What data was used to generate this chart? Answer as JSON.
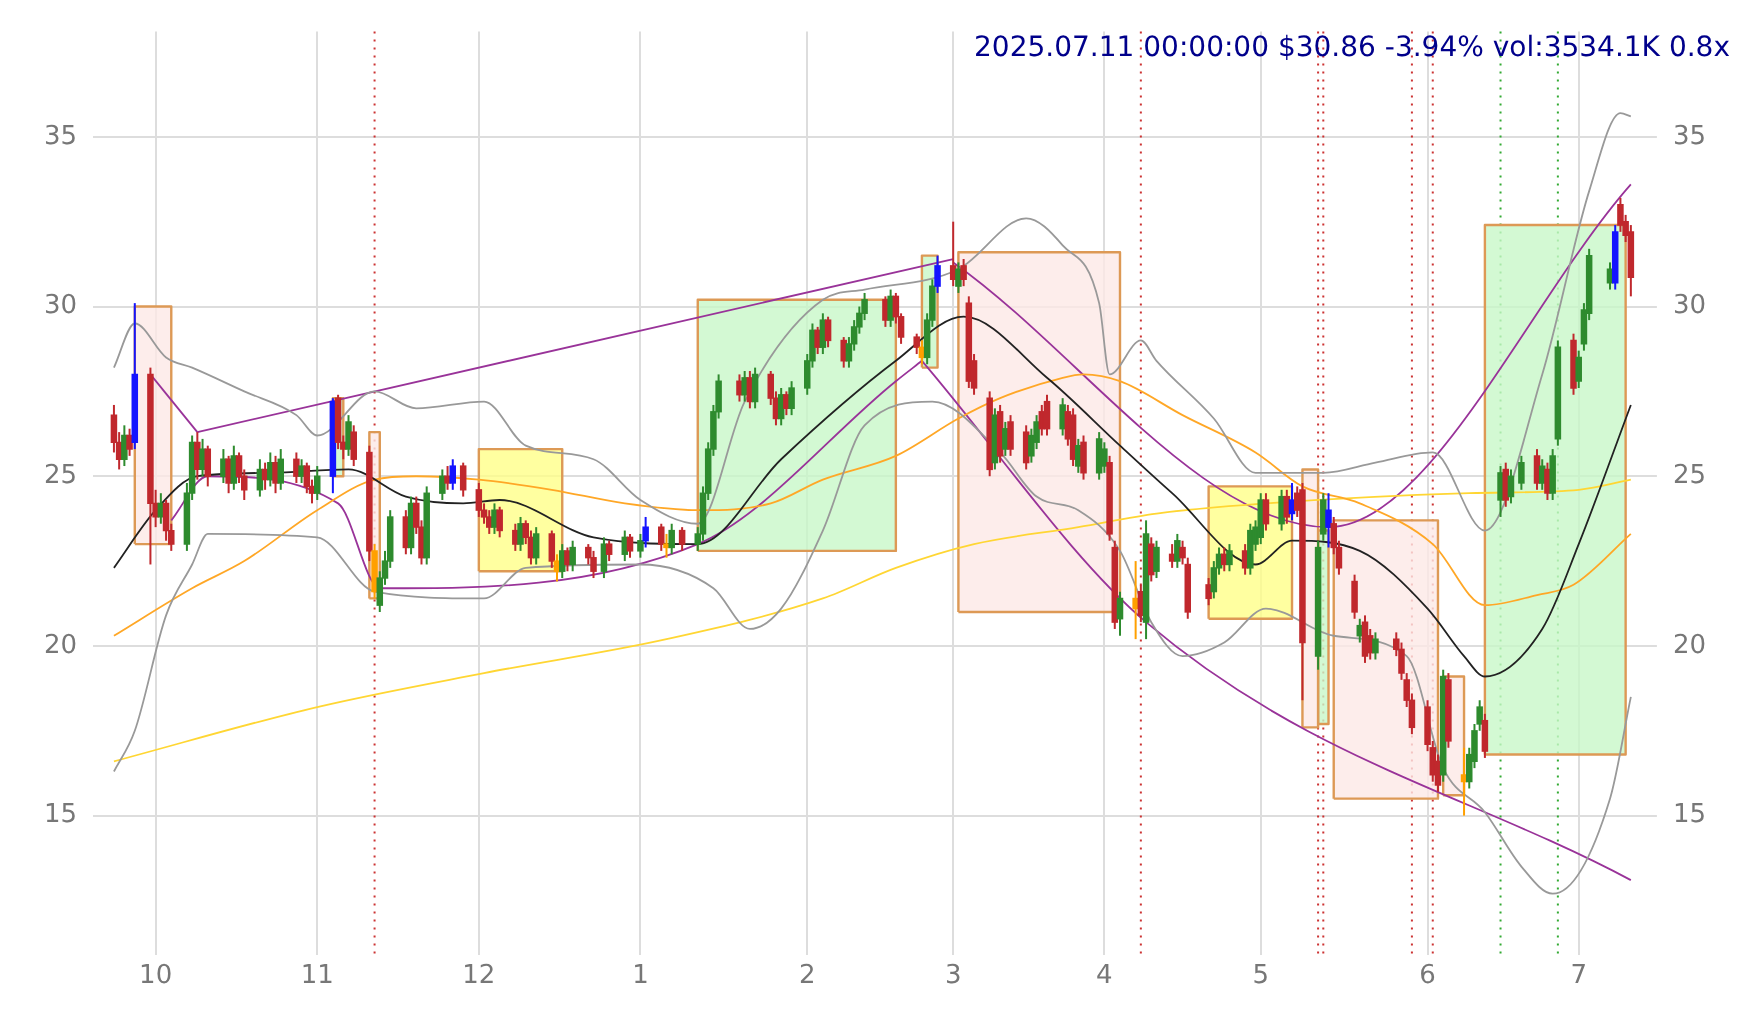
{
  "chart_data": {
    "type": "candlestick",
    "title": "2025.07.11 00:00:00 $30.86 -3.94% vol:3534.1K 0.8x",
    "x": [
      "2024-09-23",
      "2024-09-24",
      "2024-09-25",
      "2024-09-26",
      "2024-09-27",
      "2024-09-30",
      "2024-10-01",
      "2024-10-02",
      "2024-10-03",
      "2024-10-04",
      "2024-10-07",
      "2024-10-08",
      "2024-10-09",
      "2024-10-10",
      "2024-10-11",
      "2024-10-14",
      "2024-10-15",
      "2024-10-16",
      "2024-10-17",
      "2024-10-18",
      "2024-10-21",
      "2024-10-22",
      "2024-10-23",
      "2024-10-24",
      "2024-10-25",
      "2024-10-28",
      "2024-10-29",
      "2024-10-30",
      "2024-10-31",
      "2024-11-01",
      "2024-11-04",
      "2024-11-05",
      "2024-11-06",
      "2024-11-07",
      "2024-11-08",
      "2024-11-11",
      "2024-11-12",
      "2024-11-13",
      "2024-11-14",
      "2024-11-15",
      "2024-11-18",
      "2024-11-19",
      "2024-11-20",
      "2024-11-21",
      "2024-11-22",
      "2024-11-25",
      "2024-11-26",
      "2024-11-27",
      "2024-11-29",
      "2024-12-02",
      "2024-12-03",
      "2024-12-04",
      "2024-12-05",
      "2024-12-06",
      "2024-12-09",
      "2024-12-10",
      "2024-12-11",
      "2024-12-12",
      "2024-12-13",
      "2024-12-16",
      "2024-12-17",
      "2024-12-18",
      "2024-12-19",
      "2024-12-20",
      "2024-12-23",
      "2024-12-24",
      "2024-12-26",
      "2024-12-27",
      "2024-12-30",
      "2024-12-31",
      "2025-01-02",
      "2025-01-03",
      "2025-01-06",
      "2025-01-07",
      "2025-01-08",
      "2025-01-10",
      "2025-01-13",
      "2025-01-14",
      "2025-01-15",
      "2025-01-16",
      "2025-01-17",
      "2025-01-21",
      "2025-01-22",
      "2025-01-23",
      "2025-01-24",
      "2025-01-27",
      "2025-01-28",
      "2025-01-29",
      "2025-01-30",
      "2025-01-31",
      "2025-02-03",
      "2025-02-04",
      "2025-02-05",
      "2025-02-06",
      "2025-02-07",
      "2025-02-10",
      "2025-02-11",
      "2025-02-12",
      "2025-02-13",
      "2025-02-14",
      "2025-02-18",
      "2025-02-19",
      "2025-02-20",
      "2025-02-21",
      "2025-02-24",
      "2025-02-25",
      "2025-02-26",
      "2025-02-27",
      "2025-02-28",
      "2025-03-03",
      "2025-03-04",
      "2025-03-05",
      "2025-03-06",
      "2025-03-07",
      "2025-03-10",
      "2025-03-11",
      "2025-03-12",
      "2025-03-13",
      "2025-03-14",
      "2025-03-17",
      "2025-03-18",
      "2025-03-19",
      "2025-03-20",
      "2025-03-21",
      "2025-03-24",
      "2025-03-25",
      "2025-03-26",
      "2025-03-27",
      "2025-03-28",
      "2025-03-31",
      "2025-04-01",
      "2025-04-02",
      "2025-04-03",
      "2025-04-04",
      "2025-04-07",
      "2025-04-08",
      "2025-04-09",
      "2025-04-10",
      "2025-04-11",
      "2025-04-14",
      "2025-04-15",
      "2025-04-16",
      "2025-04-17",
      "2025-04-21",
      "2025-04-22",
      "2025-04-23",
      "2025-04-24",
      "2025-04-25",
      "2025-04-28",
      "2025-04-29",
      "2025-04-30",
      "2025-05-01",
      "2025-05-02",
      "2025-05-05",
      "2025-05-06",
      "2025-05-07",
      "2025-05-08",
      "2025-05-09",
      "2025-05-12",
      "2025-05-13",
      "2025-05-14",
      "2025-05-15",
      "2025-05-16",
      "2025-05-19",
      "2025-05-20",
      "2025-05-21",
      "2025-05-22",
      "2025-05-23",
      "2025-05-27",
      "2025-05-28",
      "2025-05-29",
      "2025-05-30",
      "2025-06-02",
      "2025-06-03",
      "2025-06-04",
      "2025-06-05",
      "2025-06-06",
      "2025-06-09",
      "2025-06-10",
      "2025-06-11",
      "2025-06-12",
      "2025-06-13",
      "2025-06-16",
      "2025-06-17",
      "2025-06-18",
      "2025-06-20",
      "2025-06-23",
      "2025-06-24",
      "2025-06-25",
      "2025-06-26",
      "2025-06-27",
      "2025-06-30",
      "2025-07-01",
      "2025-07-02",
      "2025-07-03",
      "2025-07-07",
      "2025-07-08",
      "2025-07-09",
      "2025-07-10",
      "2025-07-11"
    ],
    "ohlc": [
      [
        26.8,
        27.1,
        25.7,
        26.0
      ],
      [
        26.0,
        26.3,
        25.2,
        25.5
      ],
      [
        25.5,
        26.5,
        25.3,
        26.2
      ],
      [
        26.2,
        26.4,
        25.6,
        25.8
      ],
      [
        26.0,
        30.1,
        25.8,
        28.0
      ],
      [
        28.0,
        28.2,
        22.4,
        24.2
      ],
      [
        24.2,
        24.6,
        23.5,
        23.8
      ],
      [
        23.8,
        24.5,
        23.6,
        24.2
      ],
      [
        24.2,
        24.3,
        23.1,
        23.4
      ],
      [
        23.4,
        23.6,
        22.8,
        23.0
      ],
      [
        23.0,
        24.8,
        22.8,
        24.5
      ],
      [
        24.5,
        26.2,
        24.3,
        26.0
      ],
      [
        26.0,
        26.3,
        24.9,
        25.2
      ],
      [
        25.2,
        26.1,
        25.0,
        25.8
      ],
      [
        25.8,
        25.9,
        24.7,
        25.0
      ],
      [
        25.0,
        25.8,
        24.8,
        25.5
      ],
      [
        25.5,
        25.6,
        24.5,
        24.8
      ],
      [
        24.8,
        25.9,
        24.6,
        25.6
      ],
      [
        25.6,
        25.7,
        24.8,
        25.0
      ],
      [
        25.0,
        25.2,
        24.3,
        24.6
      ],
      [
        24.6,
        25.5,
        24.4,
        25.2
      ],
      [
        25.2,
        25.4,
        24.6,
        24.9
      ],
      [
        24.9,
        25.7,
        24.7,
        25.4
      ],
      [
        25.4,
        25.6,
        24.5,
        24.8
      ],
      [
        24.8,
        25.8,
        24.6,
        25.5
      ],
      [
        25.5,
        25.7,
        24.8,
        25.0
      ],
      [
        25.0,
        25.5,
        24.8,
        25.3
      ],
      [
        25.3,
        25.4,
        24.5,
        24.7
      ],
      [
        24.7,
        24.9,
        24.2,
        24.5
      ],
      [
        24.5,
        25.3,
        24.3,
        25.0
      ],
      [
        25.0,
        27.3,
        24.5,
        27.2
      ],
      [
        27.3,
        27.4,
        25.8,
        26.0
      ],
      [
        26.0,
        26.2,
        25.5,
        25.8
      ],
      [
        25.8,
        26.8,
        25.6,
        26.6
      ],
      [
        26.3,
        26.5,
        25.3,
        25.5
      ],
      [
        25.7,
        25.9,
        22.5,
        22.8
      ],
      [
        22.8,
        23.0,
        21.4,
        21.6
      ],
      [
        21.2,
        22.2,
        21.0,
        22.0
      ],
      [
        22.0,
        22.8,
        21.8,
        22.5
      ],
      [
        22.5,
        24.0,
        22.3,
        23.8
      ],
      [
        23.8,
        24.0,
        22.7,
        22.9
      ],
      [
        22.9,
        24.4,
        22.7,
        24.2
      ],
      [
        24.2,
        24.4,
        23.3,
        23.5
      ],
      [
        23.5,
        23.7,
        22.4,
        22.6
      ],
      [
        22.6,
        24.7,
        22.4,
        24.5
      ],
      [
        24.5,
        25.2,
        24.3,
        25.0
      ],
      [
        25.0,
        25.3,
        24.6,
        24.8
      ],
      [
        24.8,
        25.5,
        24.6,
        25.3
      ],
      [
        25.3,
        25.4,
        24.4,
        24.6
      ],
      [
        24.6,
        24.8,
        23.8,
        24.0
      ],
      [
        24.0,
        24.2,
        23.6,
        23.8
      ],
      [
        23.8,
        24.0,
        23.3,
        23.5
      ],
      [
        23.5,
        24.2,
        23.3,
        24.0
      ],
      [
        24.0,
        24.1,
        23.2,
        23.4
      ],
      [
        23.4,
        23.6,
        22.8,
        23.0
      ],
      [
        23.0,
        23.8,
        22.8,
        23.6
      ],
      [
        23.6,
        23.7,
        23.0,
        23.2
      ],
      [
        23.2,
        23.4,
        22.4,
        22.6
      ],
      [
        22.6,
        23.5,
        22.4,
        23.3
      ],
      [
        23.3,
        23.4,
        22.3,
        22.5
      ],
      [
        22.5,
        22.7,
        21.9,
        22.2
      ],
      [
        22.2,
        23.0,
        22.0,
        22.8
      ],
      [
        22.8,
        22.9,
        22.2,
        22.4
      ],
      [
        22.4,
        23.1,
        22.2,
        22.9
      ],
      [
        22.9,
        23.0,
        22.4,
        22.6
      ],
      [
        22.6,
        22.8,
        22.0,
        22.2
      ],
      [
        22.2,
        23.2,
        22.0,
        23.0
      ],
      [
        23.0,
        23.1,
        22.5,
        22.7
      ],
      [
        22.7,
        23.4,
        22.5,
        23.2
      ],
      [
        23.2,
        23.3,
        22.6,
        22.8
      ],
      [
        22.8,
        23.3,
        22.6,
        23.1
      ],
      [
        23.1,
        23.8,
        22.9,
        23.5
      ],
      [
        23.5,
        23.6,
        22.8,
        23.0
      ],
      [
        23.0,
        23.3,
        22.6,
        22.9
      ],
      [
        22.9,
        23.6,
        22.7,
        23.4
      ],
      [
        23.4,
        23.5,
        22.8,
        23.0
      ],
      [
        23.0,
        23.5,
        22.8,
        23.3
      ],
      [
        23.3,
        24.7,
        23.1,
        24.5
      ],
      [
        24.5,
        26.0,
        24.3,
        25.8
      ],
      [
        25.8,
        27.1,
        25.6,
        26.9
      ],
      [
        26.9,
        28.0,
        26.7,
        27.8
      ],
      [
        27.8,
        28.0,
        27.2,
        27.4
      ],
      [
        27.4,
        28.1,
        27.2,
        27.9
      ],
      [
        27.9,
        28.1,
        27.0,
        27.2
      ],
      [
        27.2,
        28.2,
        27.0,
        28.0
      ],
      [
        28.0,
        28.1,
        27.1,
        27.3
      ],
      [
        27.3,
        27.5,
        26.5,
        26.7
      ],
      [
        26.7,
        27.6,
        26.5,
        27.4
      ],
      [
        27.4,
        27.5,
        26.8,
        27.0
      ],
      [
        27.0,
        27.8,
        26.8,
        27.6
      ],
      [
        27.6,
        28.6,
        27.4,
        28.4
      ],
      [
        28.4,
        29.5,
        28.2,
        29.3
      ],
      [
        29.3,
        29.4,
        28.6,
        28.8
      ],
      [
        28.8,
        29.8,
        28.6,
        29.6
      ],
      [
        29.6,
        29.7,
        28.8,
        29.0
      ],
      [
        29.0,
        29.1,
        28.2,
        28.4
      ],
      [
        28.4,
        29.1,
        28.2,
        28.9
      ],
      [
        28.9,
        29.6,
        28.7,
        29.4
      ],
      [
        29.4,
        30.0,
        29.2,
        29.8
      ],
      [
        29.8,
        30.4,
        29.6,
        30.2
      ],
      [
        30.2,
        30.3,
        29.4,
        29.6
      ],
      [
        29.6,
        30.5,
        29.4,
        30.3
      ],
      [
        30.3,
        30.4,
        29.5,
        29.7
      ],
      [
        29.7,
        29.8,
        28.9,
        29.1
      ],
      [
        29.1,
        29.2,
        28.6,
        28.8
      ],
      [
        28.8,
        29.0,
        28.3,
        28.5
      ],
      [
        28.5,
        29.8,
        28.3,
        29.6
      ],
      [
        29.6,
        30.8,
        29.4,
        30.6
      ],
      [
        30.6,
        31.5,
        30.4,
        31.2
      ],
      [
        31.2,
        32.5,
        30.6,
        30.8
      ],
      [
        30.6,
        31.3,
        30.4,
        31.1
      ],
      [
        31.2,
        31.4,
        30.6,
        30.8
      ],
      [
        30.1,
        30.3,
        27.6,
        27.8
      ],
      [
        28.4,
        28.6,
        27.4,
        27.6
      ],
      [
        27.3,
        27.5,
        25.0,
        25.2
      ],
      [
        25.4,
        27.0,
        25.2,
        26.8
      ],
      [
        26.9,
        27.1,
        25.4,
        25.6
      ],
      [
        25.8,
        26.6,
        25.6,
        26.4
      ],
      [
        26.6,
        26.8,
        25.6,
        25.8
      ],
      [
        26.3,
        26.5,
        25.2,
        25.4
      ],
      [
        25.6,
        26.4,
        25.4,
        26.2
      ],
      [
        26.0,
        26.8,
        25.8,
        26.6
      ],
      [
        26.9,
        27.1,
        26.2,
        26.4
      ],
      [
        27.2,
        27.4,
        26.2,
        26.4
      ],
      [
        26.4,
        27.3,
        26.2,
        27.1
      ],
      [
        26.9,
        27.1,
        25.9,
        26.1
      ],
      [
        26.8,
        27.0,
        25.3,
        25.5
      ],
      [
        25.3,
        26.1,
        25.1,
        25.9
      ],
      [
        26.0,
        26.2,
        24.9,
        25.1
      ],
      [
        25.1,
        26.3,
        24.9,
        26.1
      ],
      [
        25.3,
        26.0,
        25.1,
        25.8
      ],
      [
        25.4,
        25.6,
        23.1,
        23.3
      ],
      [
        22.9,
        23.1,
        20.5,
        20.7
      ],
      [
        20.8,
        21.6,
        20.3,
        21.4
      ],
      [
        21.4,
        22.5,
        20.2,
        21.1
      ],
      [
        21.6,
        21.8,
        20.7,
        20.9
      ],
      [
        20.7,
        23.7,
        20.2,
        23.3
      ],
      [
        23.0,
        23.2,
        21.9,
        22.1
      ],
      [
        22.2,
        23.1,
        22.0,
        22.9
      ],
      [
        22.7,
        23.0,
        22.3,
        22.5
      ],
      [
        22.5,
        23.3,
        22.3,
        23.1
      ],
      [
        22.9,
        23.1,
        22.4,
        22.6
      ],
      [
        22.4,
        22.6,
        20.8,
        21.0
      ],
      [
        21.8,
        22.0,
        21.2,
        21.4
      ],
      [
        21.6,
        22.5,
        21.4,
        22.3
      ],
      [
        22.3,
        22.9,
        22.1,
        22.7
      ],
      [
        22.7,
        22.9,
        22.2,
        22.4
      ],
      [
        22.4,
        23.0,
        22.2,
        22.8
      ],
      [
        22.8,
        23.0,
        22.1,
        22.3
      ],
      [
        22.3,
        23.6,
        22.1,
        23.4
      ],
      [
        23.0,
        23.7,
        22.8,
        23.5
      ],
      [
        23.2,
        24.5,
        23.0,
        24.3
      ],
      [
        24.3,
        24.5,
        23.4,
        23.6
      ],
      [
        23.6,
        24.6,
        23.4,
        24.4
      ],
      [
        24.4,
        24.6,
        23.6,
        23.8
      ],
      [
        23.9,
        24.8,
        23.7,
        24.3
      ],
      [
        24.5,
        24.7,
        23.8,
        24.0
      ],
      [
        24.6,
        24.8,
        18.4,
        20.1
      ],
      [
        19.7,
        23.1,
        19.3,
        22.9
      ],
      [
        23.3,
        24.5,
        23.1,
        24.3
      ],
      [
        23.5,
        24.5,
        22.9,
        24.0
      ],
      [
        23.6,
        23.8,
        22.7,
        22.9
      ],
      [
        22.9,
        23.1,
        22.1,
        22.3
      ],
      [
        21.9,
        22.1,
        20.8,
        21.0
      ],
      [
        20.3,
        20.8,
        20.1,
        20.6
      ],
      [
        20.7,
        20.9,
        19.5,
        19.7
      ],
      [
        20.3,
        20.5,
        19.6,
        19.8
      ],
      [
        19.8,
        20.4,
        19.6,
        20.2
      ],
      [
        20.2,
        20.4,
        19.7,
        19.9
      ],
      [
        19.9,
        20.1,
        19.0,
        19.2
      ],
      [
        19.0,
        19.2,
        18.2,
        18.4
      ],
      [
        18.4,
        18.6,
        17.4,
        17.6
      ],
      [
        18.2,
        18.4,
        16.9,
        17.1
      ],
      [
        17.0,
        17.2,
        16.0,
        16.2
      ],
      [
        16.6,
        16.8,
        15.7,
        15.9
      ],
      [
        16.2,
        19.3,
        16.0,
        19.1
      ],
      [
        19.0,
        19.2,
        17.0,
        17.2
      ],
      [
        16.2,
        17.0,
        15.0,
        16.0
      ],
      [
        16.0,
        17.0,
        15.8,
        16.8
      ],
      [
        16.6,
        17.7,
        16.4,
        17.5
      ],
      [
        17.7,
        18.4,
        17.5,
        18.2
      ],
      [
        17.8,
        18.0,
        16.7,
        16.9
      ],
      [
        24.3,
        25.3,
        23.8,
        25.1
      ],
      [
        25.2,
        25.4,
        24.1,
        24.3
      ],
      [
        24.4,
        25.2,
        24.2,
        25.0
      ],
      [
        24.8,
        25.6,
        24.6,
        25.4
      ],
      [
        25.6,
        25.8,
        24.6,
        24.8
      ],
      [
        24.8,
        25.5,
        24.6,
        25.3
      ],
      [
        25.2,
        25.4,
        24.3,
        24.5
      ],
      [
        24.5,
        25.8,
        24.3,
        25.6
      ],
      [
        26.1,
        29.0,
        25.9,
        28.8
      ],
      [
        29.0,
        29.2,
        27.4,
        27.6
      ],
      [
        27.8,
        28.7,
        27.6,
        28.5
      ],
      [
        28.9,
        30.1,
        28.7,
        29.9
      ],
      [
        29.8,
        31.7,
        29.6,
        31.5
      ],
      [
        30.7,
        31.3,
        30.5,
        31.1
      ],
      [
        30.7,
        32.4,
        30.5,
        32.2
      ],
      [
        33.0,
        33.2,
        32.2,
        32.4
      ],
      [
        32.5,
        32.7,
        31.9,
        32.1
      ],
      [
        32.2,
        32.4,
        30.3,
        30.86
      ]
    ],
    "colors": [
      "#c0282d",
      "#c0282d",
      "#2e8b2e",
      "#c0282d",
      "#1414ff",
      "#c0282d",
      "#c0282d",
      "#2e8b2e",
      "#c0282d",
      "#c0282d",
      "#2e8b2e",
      "#2e8b2e",
      "#c0282d",
      "#2e8b2e",
      "#c0282d",
      "#2e8b2e",
      "#c0282d",
      "#2e8b2e",
      "#c0282d",
      "#c0282d",
      "#2e8b2e",
      "#c0282d",
      "#2e8b2e",
      "#c0282d",
      "#2e8b2e",
      "#c0282d",
      "#2e8b2e",
      "#c0282d",
      "#c0282d",
      "#2e8b2e",
      "#1414ff",
      "#c0282d",
      "#c0282d",
      "#2e8b2e",
      "#c0282d",
      "#c0282d",
      "#ffa000",
      "#2e8b2e",
      "#2e8b2e",
      "#2e8b2e",
      "#c0282d",
      "#2e8b2e",
      "#c0282d",
      "#c0282d",
      "#2e8b2e",
      "#2e8b2e",
      "#c0282d",
      "#1414ff",
      "#c0282d",
      "#c0282d",
      "#c0282d",
      "#c0282d",
      "#2e8b2e",
      "#c0282d",
      "#c0282d",
      "#2e8b2e",
      "#c0282d",
      "#c0282d",
      "#2e8b2e",
      "#c0282d",
      "#ffa000",
      "#2e8b2e",
      "#c0282d",
      "#2e8b2e",
      "#c0282d",
      "#c0282d",
      "#2e8b2e",
      "#c0282d",
      "#2e8b2e",
      "#c0282d",
      "#2e8b2e",
      "#1414ff",
      "#c0282d",
      "#ffa000",
      "#2e8b2e",
      "#c0282d",
      "#2e8b2e",
      "#2e8b2e",
      "#2e8b2e",
      "#2e8b2e",
      "#2e8b2e",
      "#c0282d",
      "#2e8b2e",
      "#c0282d",
      "#2e8b2e",
      "#c0282d",
      "#c0282d",
      "#2e8b2e",
      "#c0282d",
      "#2e8b2e",
      "#2e8b2e",
      "#2e8b2e",
      "#c0282d",
      "#2e8b2e",
      "#c0282d",
      "#c0282d",
      "#2e8b2e",
      "#2e8b2e",
      "#2e8b2e",
      "#2e8b2e",
      "#c0282d",
      "#2e8b2e",
      "#c0282d",
      "#c0282d",
      "#c0282d",
      "#ffa000",
      "#2e8b2e",
      "#2e8b2e",
      "#1414ff",
      "#c0282d",
      "#2e8b2e",
      "#c0282d",
      "#c0282d",
      "#c0282d",
      "#c0282d",
      "#2e8b2e",
      "#c0282d",
      "#2e8b2e",
      "#c0282d",
      "#c0282d",
      "#2e8b2e",
      "#2e8b2e",
      "#c0282d",
      "#c0282d",
      "#2e8b2e",
      "#c0282d",
      "#c0282d",
      "#2e8b2e",
      "#c0282d",
      "#2e8b2e",
      "#2e8b2e",
      "#c0282d",
      "#c0282d",
      "#2e8b2e",
      "#ffa000",
      "#c0282d",
      "#2e8b2e",
      "#c0282d",
      "#2e8b2e",
      "#c0282d",
      "#2e8b2e",
      "#c0282d",
      "#c0282d",
      "#c0282d",
      "#2e8b2e",
      "#2e8b2e",
      "#c0282d",
      "#2e8b2e",
      "#c0282d",
      "#2e8b2e",
      "#2e8b2e",
      "#2e8b2e",
      "#c0282d",
      "#2e8b2e",
      "#c0282d",
      "#1414ff",
      "#c0282d",
      "#c0282d",
      "#2e8b2e",
      "#2e8b2e",
      "#1414ff",
      "#c0282d",
      "#c0282d",
      "#c0282d",
      "#2e8b2e",
      "#c0282d",
      "#c0282d",
      "#2e8b2e",
      "#c0282d",
      "#c0282d",
      "#c0282d",
      "#c0282d",
      "#c0282d",
      "#c0282d",
      "#c0282d",
      "#2e8b2e",
      "#c0282d",
      "#ffa000",
      "#2e8b2e",
      "#2e8b2e",
      "#2e8b2e",
      "#c0282d",
      "#2e8b2e",
      "#c0282d",
      "#2e8b2e",
      "#2e8b2e",
      "#c0282d",
      "#2e8b2e",
      "#c0282d",
      "#2e8b2e",
      "#2e8b2e",
      "#c0282d",
      "#2e8b2e",
      "#2e8b2e",
      "#2e8b2e",
      "#2e8b2e",
      "#1414ff",
      "#c0282d",
      "#c0282d",
      "#c0282d"
    ],
    "series": [
      {
        "type": "area",
        "color": "#fde8e6",
        "x": [
          "2024-09-27",
          "2024-09-27",
          "2024-10-04",
          "2024-10-04",
          "2024-09-27"
        ],
        "values": [
          23.0,
          30.0,
          30.0,
          23.0,
          23.0
        ]
      },
      {
        "type": "area",
        "color": "#c8f8c8",
        "x": [
          "2024-11-04",
          "2024-11-04",
          "2024-11-06",
          "2024-11-06",
          "2024-11-04"
        ],
        "values": [
          25.0,
          27.3,
          27.3,
          25.0,
          25.0
        ]
      },
      {
        "type": "area",
        "color": "#fde8e6",
        "x": [
          "2024-11-11",
          "2024-11-11",
          "2024-11-13",
          "2024-11-13",
          "2024-11-11"
        ],
        "values": [
          21.4,
          26.3,
          26.3,
          21.4,
          21.4
        ]
      },
      {
        "type": "area",
        "color": "#ffff88",
        "x": [
          "2024-12-02",
          "2024-12-02",
          "2024-12-18",
          "2024-12-18",
          "2024-12-02"
        ],
        "values": [
          22.2,
          25.8,
          25.8,
          22.2,
          22.2
        ]
      },
      {
        "type": "area",
        "color": "#c8f8c8",
        "x": [
          "2025-01-13",
          "2025-01-13",
          "2025-02-20",
          "2025-02-20",
          "2025-01-13"
        ],
        "values": [
          22.8,
          30.2,
          30.2,
          22.8,
          22.8
        ]
      },
      {
        "type": "area",
        "color": "#c8f8c8",
        "x": [
          "2025-02-25",
          "2025-02-25",
          "2025-02-28",
          "2025-02-28",
          "2025-02-25"
        ],
        "values": [
          28.2,
          31.5,
          31.5,
          28.2,
          28.2
        ]
      },
      {
        "type": "area",
        "color": "#fde8e6",
        "x": [
          "2025-03-04",
          "2025-03-04",
          "2025-04-04",
          "2025-04-04",
          "2025-03-04"
        ],
        "values": [
          21.0,
          31.6,
          31.6,
          21.0,
          21.0
        ]
      },
      {
        "type": "area",
        "color": "#ffff88",
        "x": [
          "2025-04-21",
          "2025-04-21",
          "2025-05-07",
          "2025-05-07",
          "2025-04-21"
        ],
        "values": [
          20.8,
          24.7,
          24.7,
          20.8,
          20.8
        ]
      },
      {
        "type": "area",
        "color": "#fde8e6",
        "x": [
          "2025-05-09",
          "2025-05-09",
          "2025-05-12",
          "2025-05-12",
          "2025-05-09"
        ],
        "values": [
          17.6,
          25.2,
          25.2,
          17.6,
          17.6
        ]
      },
      {
        "type": "area",
        "color": "#c8f8c8",
        "x": [
          "2025-05-12",
          "2025-05-12",
          "2025-05-14",
          "2025-05-14",
          "2025-05-12"
        ],
        "values": [
          17.7,
          23.4,
          23.4,
          17.7,
          17.7
        ]
      },
      {
        "type": "area",
        "color": "#fde8e6",
        "x": [
          "2025-05-15",
          "2025-05-15",
          "2025-06-04",
          "2025-06-04",
          "2025-05-15"
        ],
        "values": [
          15.5,
          23.7,
          23.7,
          15.5,
          15.5
        ]
      },
      {
        "type": "area",
        "color": "#fde8e6",
        "x": [
          "2025-06-05",
          "2025-06-05",
          "2025-06-09",
          "2025-06-09",
          "2025-06-05"
        ],
        "values": [
          15.6,
          19.1,
          19.1,
          15.6,
          15.6
        ]
      },
      {
        "type": "area",
        "color": "#c8f8c8",
        "x": [
          "2025-06-13",
          "2025-06-13",
          "2025-07-10",
          "2025-07-10",
          "2025-06-13"
        ],
        "values": [
          16.8,
          32.4,
          32.4,
          16.8,
          16.8
        ]
      },
      {
        "type": "line",
        "color": "#999999",
        "x": [
          "2024-09-23",
          "2024-09-27",
          "2024-10-03",
          "2024-10-08",
          "2024-10-18",
          "2024-10-28",
          "2024-11-01",
          "2024-11-12",
          "2024-11-20",
          "2024-12-03",
          "2024-12-11",
          "2024-12-24",
          "2025-01-02",
          "2025-01-13",
          "2025-01-22",
          "2025-02-06",
          "2025-02-14",
          "2025-03-04",
          "2025-03-17",
          "2025-03-24",
          "2025-03-31",
          "2025-04-02",
          "2025-04-08",
          "2025-04-11",
          "2025-04-22",
          "2025-04-30",
          "2025-05-13",
          "2025-05-23",
          "2025-06-03",
          "2025-06-13",
          "2025-06-24",
          "2025-07-03",
          "2025-07-09",
          "2025-07-11"
        ],
        "values": [
          28.2,
          29.5,
          28.5,
          28.2,
          27.5,
          26.8,
          26.2,
          27.5,
          27.0,
          27.2,
          25.9,
          25.5,
          24.3,
          23.6,
          27.2,
          30.2,
          30.5,
          31.1,
          32.6,
          31.8,
          30.1,
          28.0,
          29.0,
          28.4,
          26.7,
          25.1,
          25.1,
          25.4,
          25.7,
          23.4,
          28.0,
          33.4,
          35.7,
          35.6
        ]
      },
      {
        "type": "line",
        "color": "#999999",
        "x": [
          "2024-09-23",
          "2024-09-27",
          "2024-10-03",
          "2024-10-08",
          "2024-10-11",
          "2024-11-01",
          "2024-11-12",
          "2024-12-03",
          "2024-12-11",
          "2025-01-02",
          "2025-01-16",
          "2025-01-23",
          "2025-01-29",
          "2025-02-06",
          "2025-02-14",
          "2025-02-27",
          "2025-03-12",
          "2025-03-19",
          "2025-03-27",
          "2025-04-04",
          "2025-04-10",
          "2025-04-16",
          "2025-04-24",
          "2025-05-02",
          "2025-05-15",
          "2025-05-29",
          "2025-06-05",
          "2025-06-13",
          "2025-06-20",
          "2025-06-26",
          "2025-07-07",
          "2025-07-11"
        ],
        "values": [
          16.3,
          17.5,
          20.9,
          22.4,
          23.3,
          23.2,
          21.6,
          21.4,
          22.3,
          22.4,
          21.7,
          20.5,
          21.1,
          23.4,
          26.5,
          27.2,
          25.7,
          24.4,
          24.0,
          22.8,
          20.7,
          19.7,
          20.1,
          21.1,
          20.3,
          19.7,
          16.4,
          15.1,
          13.5,
          12.7,
          15.5,
          18.5
        ]
      },
      {
        "type": "line",
        "color": "#222222",
        "x": [
          "2024-09-23",
          "2024-10-01",
          "2024-10-09",
          "2024-10-23",
          "2024-11-07",
          "2024-11-18",
          "2024-11-29",
          "2024-12-06",
          "2024-12-24",
          "2025-01-13",
          "2025-01-29",
          "2025-02-20",
          "2025-03-05",
          "2025-03-21",
          "2025-04-04",
          "2025-04-14",
          "2025-04-30",
          "2025-05-07",
          "2025-05-20",
          "2025-06-02",
          "2025-06-09",
          "2025-06-13",
          "2025-06-24",
          "2025-07-01",
          "2025-07-11"
        ],
        "values": [
          22.3,
          24.0,
          25.0,
          25.1,
          25.2,
          24.4,
          24.2,
          24.3,
          23.2,
          23.0,
          25.5,
          28.4,
          29.7,
          27.9,
          25.9,
          24.5,
          22.4,
          23.1,
          22.8,
          21.1,
          19.7,
          19.1,
          20.5,
          23.0,
          27.1
        ]
      },
      {
        "type": "line",
        "color": "#ffa726",
        "x": [
          "2024-09-23",
          "2024-10-08",
          "2024-10-18",
          "2024-11-01",
          "2024-11-12",
          "2024-11-20",
          "2024-12-02",
          "2024-12-16",
          "2024-12-30",
          "2025-01-13",
          "2025-01-27",
          "2025-02-06",
          "2025-02-20",
          "2025-03-04",
          "2025-03-12",
          "2025-03-24",
          "2025-03-28",
          "2025-04-04",
          "2025-04-16",
          "2025-04-30",
          "2025-05-09",
          "2025-05-20",
          "2025-06-03",
          "2025-06-13",
          "2025-06-23",
          "2025-06-30",
          "2025-07-11"
        ],
        "values": [
          20.3,
          21.7,
          22.5,
          24.0,
          24.9,
          25.0,
          24.9,
          24.6,
          24.2,
          24.0,
          24.2,
          24.9,
          25.6,
          26.7,
          27.3,
          27.9,
          28.0,
          27.8,
          26.8,
          25.7,
          24.7,
          24.2,
          23.0,
          21.2,
          21.5,
          21.8,
          23.3
        ]
      },
      {
        "type": "line",
        "color": "#ffd633",
        "x": [
          "2024-09-23",
          "2024-11-01",
          "2024-12-03",
          "2025-01-07",
          "2025-02-06",
          "2025-02-20",
          "2025-03-07",
          "2025-03-27",
          "2025-04-11",
          "2025-05-02",
          "2025-06-10",
          "2025-07-01",
          "2025-07-11"
        ],
        "values": [
          16.6,
          18.2,
          19.2,
          20.2,
          21.4,
          22.3,
          23.0,
          23.5,
          23.9,
          24.2,
          24.5,
          24.6,
          24.9
        ]
      },
      {
        "type": "line",
        "color": "#993399",
        "x": [
          "2024-09-30",
          "2024-10-09"
        ],
        "values": [
          28.0,
          26.3
        ]
      },
      {
        "type": "line",
        "color": "#993399",
        "x": [
          "2024-10-09",
          "2025-03-03"
        ],
        "values": [
          26.3,
          31.4
        ]
      },
      {
        "type": "line",
        "color": "#993399",
        "x": [
          "2024-10-04",
          "2024-10-11",
          "2024-11-05",
          "2024-11-13",
          "2025-01-13",
          "2025-02-20",
          "2025-02-25"
        ],
        "values": [
          23.7,
          25.0,
          24.2,
          21.7,
          23.0,
          27.8,
          28.4
        ]
      },
      {
        "type": "line",
        "color": "#993399",
        "x": [
          "2025-02-25",
          "2025-04-09",
          "2025-07-11"
        ],
        "values": [
          28.4,
          20.7,
          13.1
        ]
      },
      {
        "type": "line",
        "color": "#993399",
        "x": [
          "2025-03-03",
          "2025-05-14",
          "2025-07-11"
        ],
        "values": [
          31.3,
          23.5,
          33.6
        ]
      }
    ],
    "ref_lines": [
      {
        "axis": "x",
        "value": "2024-11-12",
        "color": "#cc3333",
        "line_style": "dotted"
      },
      {
        "axis": "x",
        "value": "2025-04-08",
        "color": "#cc3333",
        "line_style": "dotted"
      },
      {
        "axis": "x",
        "value": "2025-05-12",
        "color": "#cc3333",
        "line_style": "dotted"
      },
      {
        "axis": "x",
        "value": "2025-05-13",
        "color": "#cc3333",
        "line_style": "dotted"
      },
      {
        "axis": "x",
        "value": "2025-05-30",
        "color": "#cc3333",
        "line_style": "dotted"
      },
      {
        "axis": "x",
        "value": "2025-06-03",
        "color": "#cc3333",
        "line_style": "dotted"
      },
      {
        "axis": "x",
        "value": "2025-06-16",
        "color": "#33aa33",
        "line_style": "dotted"
      },
      {
        "axis": "x",
        "value": "2025-06-27",
        "color": "#33aa33",
        "line_style": "dotted"
      }
    ],
    "xticks": [
      {
        "value": "2024-10-01",
        "label": "10"
      },
      {
        "value": "2024-11-01",
        "label": "11"
      },
      {
        "value": "2024-12-02",
        "label": "12"
      },
      {
        "value": "2025-01-02",
        "label": "1"
      },
      {
        "value": "2025-02-03",
        "label": "2"
      },
      {
        "value": "2025-03-03",
        "label": "3"
      },
      {
        "value": "2025-04-01",
        "label": "4"
      },
      {
        "value": "2025-05-01",
        "label": "5"
      },
      {
        "value": "2025-06-02",
        "label": "6"
      },
      {
        "value": "2025-07-01",
        "label": "7"
      }
    ],
    "xlim": [
      "2024-09-19",
      "2025-07-16"
    ],
    "ylim": [
      10.9,
      38.1
    ],
    "yticks": [
      15,
      20,
      25,
      30,
      35
    ],
    "y2lim": [
      10.9,
      38.1
    ],
    "y2ticks": [
      15,
      20,
      25,
      30,
      35
    ],
    "grid": true
  }
}
